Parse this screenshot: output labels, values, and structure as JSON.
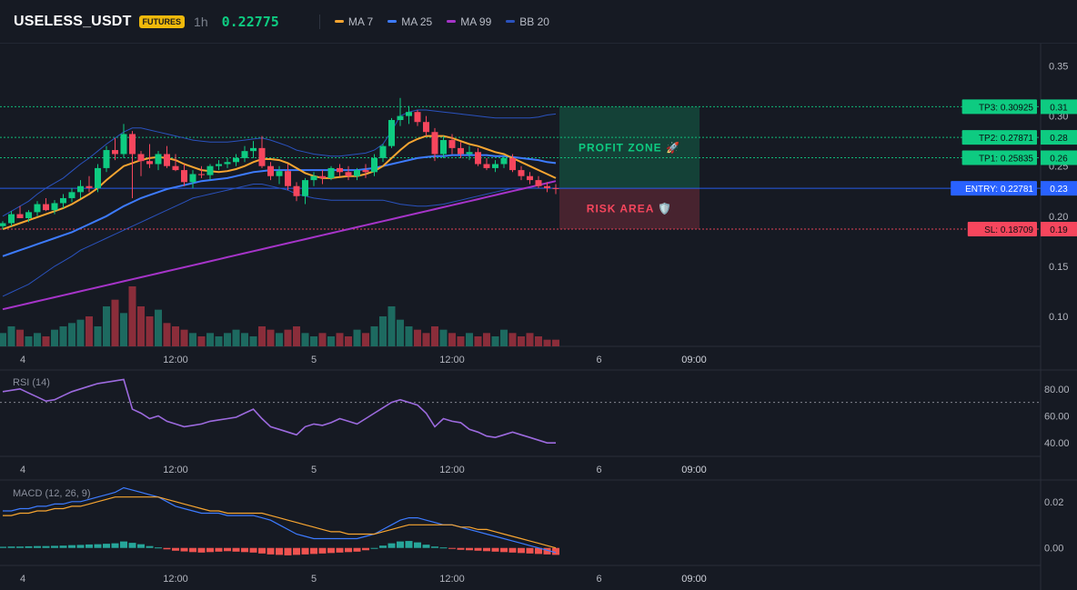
{
  "header": {
    "symbol": "USELESS_USDT",
    "badge": "FUTURES",
    "timeframe": "1h",
    "price": "0.22775",
    "legend": [
      {
        "label": "MA 7",
        "color": "#f7a531"
      },
      {
        "label": "MA 25",
        "color": "#3d7bff"
      },
      {
        "label": "MA 99",
        "color": "#a634c9"
      },
      {
        "label": "BB 20",
        "color": "#2a52be"
      }
    ]
  },
  "colors": {
    "up": "#26a69a",
    "up_candle": "#0ecb81",
    "down": "#f6465d",
    "up_vol": "#1d6a60",
    "down_vol": "#8a2d3a"
  },
  "chart_data": [
    {
      "type": "candlestick",
      "panel": "price",
      "ylim": [
        0.07,
        0.365
      ],
      "y_ticks": [
        "0.35",
        "0.30",
        "0.25",
        "0.20",
        "0.15",
        "0.10"
      ],
      "y_tick_values": [
        0.35,
        0.3,
        0.25,
        0.2,
        0.15,
        0.1
      ],
      "x_ticks": [
        "4",
        "12:00",
        "5",
        "12:00",
        "6",
        "09:00"
      ],
      "x_tick_bars": [
        0,
        20,
        36,
        52,
        69,
        80
      ],
      "candles": [
        [
          0.19,
          0.195,
          0.187,
          0.193
        ],
        [
          0.193,
          0.205,
          0.19,
          0.202
        ],
        [
          0.202,
          0.21,
          0.198,
          0.198
        ],
        [
          0.198,
          0.206,
          0.194,
          0.204
        ],
        [
          0.204,
          0.215,
          0.2,
          0.212
        ],
        [
          0.212,
          0.218,
          0.205,
          0.206
        ],
        [
          0.206,
          0.216,
          0.202,
          0.213
        ],
        [
          0.213,
          0.222,
          0.208,
          0.218
        ],
        [
          0.218,
          0.228,
          0.214,
          0.224
        ],
        [
          0.224,
          0.236,
          0.218,
          0.23
        ],
        [
          0.23,
          0.24,
          0.224,
          0.228
        ],
        [
          0.228,
          0.252,
          0.224,
          0.248
        ],
        [
          0.248,
          0.27,
          0.244,
          0.266
        ],
        [
          0.266,
          0.278,
          0.256,
          0.262
        ],
        [
          0.262,
          0.292,
          0.258,
          0.282
        ],
        [
          0.282,
          0.285,
          0.218,
          0.262
        ],
        [
          0.262,
          0.265,
          0.24,
          0.255
        ],
        [
          0.255,
          0.272,
          0.248,
          0.252
        ],
        [
          0.252,
          0.265,
          0.246,
          0.262
        ],
        [
          0.262,
          0.27,
          0.248,
          0.25
        ],
        [
          0.25,
          0.262,
          0.245,
          0.246
        ],
        [
          0.246,
          0.252,
          0.23,
          0.234
        ],
        [
          0.234,
          0.246,
          0.228,
          0.242
        ],
        [
          0.242,
          0.25,
          0.238,
          0.241
        ],
        [
          0.241,
          0.252,
          0.236,
          0.25
        ],
        [
          0.25,
          0.256,
          0.246,
          0.252
        ],
        [
          0.252,
          0.258,
          0.248,
          0.254
        ],
        [
          0.254,
          0.262,
          0.25,
          0.258
        ],
        [
          0.258,
          0.27,
          0.254,
          0.265
        ],
        [
          0.265,
          0.275,
          0.258,
          0.268
        ],
        [
          0.268,
          0.28,
          0.248,
          0.25
        ],
        [
          0.25,
          0.254,
          0.236,
          0.24
        ],
        [
          0.24,
          0.25,
          0.232,
          0.245
        ],
        [
          0.245,
          0.252,
          0.226,
          0.23
        ],
        [
          0.23,
          0.234,
          0.215,
          0.22
        ],
        [
          0.22,
          0.238,
          0.212,
          0.236
        ],
        [
          0.236,
          0.244,
          0.23,
          0.24
        ],
        [
          0.24,
          0.246,
          0.232,
          0.238
        ],
        [
          0.238,
          0.25,
          0.236,
          0.248
        ],
        [
          0.248,
          0.252,
          0.24,
          0.244
        ],
        [
          0.244,
          0.25,
          0.236,
          0.24
        ],
        [
          0.24,
          0.248,
          0.236,
          0.246
        ],
        [
          0.246,
          0.252,
          0.238,
          0.244
        ],
        [
          0.244,
          0.262,
          0.24,
          0.258
        ],
        [
          0.258,
          0.272,
          0.254,
          0.27
        ],
        [
          0.27,
          0.298,
          0.268,
          0.296
        ],
        [
          0.296,
          0.318,
          0.29,
          0.3
        ],
        [
          0.3,
          0.31,
          0.292,
          0.304
        ],
        [
          0.304,
          0.306,
          0.29,
          0.294
        ],
        [
          0.294,
          0.3,
          0.28,
          0.284
        ],
        [
          0.284,
          0.288,
          0.255,
          0.262
        ],
        [
          0.262,
          0.28,
          0.258,
          0.276
        ],
        [
          0.276,
          0.282,
          0.262,
          0.268
        ],
        [
          0.268,
          0.274,
          0.258,
          0.262
        ],
        [
          0.262,
          0.27,
          0.256,
          0.264
        ],
        [
          0.264,
          0.268,
          0.25,
          0.252
        ],
        [
          0.252,
          0.258,
          0.246,
          0.248
        ],
        [
          0.248,
          0.256,
          0.244,
          0.252
        ],
        [
          0.252,
          0.26,
          0.248,
          0.258
        ],
        [
          0.258,
          0.262,
          0.244,
          0.246
        ],
        [
          0.246,
          0.25,
          0.236,
          0.24
        ],
        [
          0.24,
          0.244,
          0.232,
          0.236
        ],
        [
          0.236,
          0.24,
          0.228,
          0.23
        ],
        [
          0.23,
          0.234,
          0.224,
          0.228
        ],
        [
          0.228,
          0.232,
          0.222,
          0.22775
        ]
      ],
      "volumes": [
        4,
        6,
        5,
        3,
        4,
        3,
        5,
        6,
        7,
        8,
        9,
        6,
        12,
        14,
        10,
        18,
        12,
        9,
        11,
        7,
        6,
        5,
        4,
        3,
        4,
        3,
        4,
        5,
        4,
        3,
        6,
        5,
        4,
        5,
        6,
        4,
        3,
        4,
        3,
        4,
        3,
        5,
        4,
        6,
        9,
        12,
        8,
        6,
        5,
        4,
        6,
        5,
        4,
        3,
        4,
        3,
        4,
        3,
        5,
        4,
        3,
        4,
        3,
        2,
        2
      ],
      "bands": {
        "bb_upper": [
          0.2,
          0.205,
          0.21,
          0.215,
          0.222,
          0.228,
          0.233,
          0.238,
          0.245,
          0.252,
          0.258,
          0.265,
          0.272,
          0.278,
          0.284,
          0.288,
          0.288,
          0.286,
          0.284,
          0.282,
          0.28,
          0.278,
          0.276,
          0.275,
          0.274,
          0.274,
          0.274,
          0.275,
          0.276,
          0.277,
          0.278,
          0.276,
          0.273,
          0.27,
          0.266,
          0.264,
          0.262,
          0.261,
          0.26,
          0.26,
          0.261,
          0.262,
          0.263,
          0.266,
          0.272,
          0.285,
          0.3,
          0.304,
          0.306,
          0.306,
          0.305,
          0.304,
          0.303,
          0.302,
          0.301,
          0.3,
          0.299,
          0.298,
          0.298,
          0.298,
          0.298,
          0.298,
          0.299,
          0.301,
          0.302
        ],
        "bb_lower": [
          0.12,
          0.124,
          0.128,
          0.132,
          0.138,
          0.144,
          0.15,
          0.155,
          0.16,
          0.166,
          0.17,
          0.174,
          0.178,
          0.182,
          0.186,
          0.19,
          0.194,
          0.198,
          0.202,
          0.206,
          0.21,
          0.214,
          0.218,
          0.22,
          0.222,
          0.224,
          0.226,
          0.228,
          0.23,
          0.232,
          0.232,
          0.23,
          0.228,
          0.226,
          0.222,
          0.22,
          0.218,
          0.217,
          0.216,
          0.216,
          0.216,
          0.216,
          0.216,
          0.216,
          0.216,
          0.214,
          0.212,
          0.211,
          0.21,
          0.21,
          0.211,
          0.212,
          0.214,
          0.216,
          0.218,
          0.22,
          0.222,
          0.224,
          0.226,
          0.228,
          0.228,
          0.228,
          0.228,
          0.228,
          0.228
        ],
        "ma7": [
          0.187,
          0.19,
          0.193,
          0.196,
          0.199,
          0.202,
          0.205,
          0.208,
          0.212,
          0.217,
          0.222,
          0.228,
          0.236,
          0.243,
          0.25,
          0.253,
          0.256,
          0.258,
          0.259,
          0.258,
          0.256,
          0.252,
          0.249,
          0.246,
          0.245,
          0.244,
          0.245,
          0.247,
          0.25,
          0.254,
          0.257,
          0.257,
          0.256,
          0.253,
          0.248,
          0.243,
          0.24,
          0.238,
          0.238,
          0.239,
          0.24,
          0.24,
          0.242,
          0.245,
          0.25,
          0.258,
          0.266,
          0.273,
          0.277,
          0.28,
          0.28,
          0.28,
          0.278,
          0.275,
          0.272,
          0.27,
          0.267,
          0.264,
          0.262,
          0.258,
          0.254,
          0.25,
          0.246,
          0.242,
          0.238
        ],
        "ma25": [
          0.16,
          0.163,
          0.166,
          0.169,
          0.172,
          0.175,
          0.178,
          0.181,
          0.184,
          0.188,
          0.192,
          0.196,
          0.2,
          0.205,
          0.21,
          0.214,
          0.218,
          0.221,
          0.224,
          0.227,
          0.229,
          0.231,
          0.233,
          0.235,
          0.236,
          0.237,
          0.238,
          0.24,
          0.242,
          0.244,
          0.245,
          0.246,
          0.246,
          0.246,
          0.246,
          0.246,
          0.246,
          0.246,
          0.246,
          0.246,
          0.246,
          0.246,
          0.247,
          0.248,
          0.25,
          0.252,
          0.254,
          0.256,
          0.258,
          0.259,
          0.26,
          0.26,
          0.261,
          0.261,
          0.261,
          0.261,
          0.261,
          0.26,
          0.26,
          0.259,
          0.258,
          0.257,
          0.256,
          0.254,
          0.253
        ],
        "ma99": [
          0.107,
          0.109,
          0.111,
          0.113,
          0.115,
          0.117,
          0.119,
          0.121,
          0.123,
          0.125,
          0.127,
          0.129,
          0.131,
          0.133,
          0.135,
          0.137,
          0.139,
          0.141,
          0.143,
          0.145,
          0.147,
          0.149,
          0.151,
          0.153,
          0.155,
          0.157,
          0.159,
          0.161,
          0.163,
          0.165,
          0.167,
          0.169,
          0.171,
          0.173,
          0.175,
          0.177,
          0.179,
          0.181,
          0.183,
          0.185,
          0.187,
          0.189,
          0.191,
          0.193,
          0.195,
          0.197,
          0.199,
          0.201,
          0.203,
          0.205,
          0.207,
          0.209,
          0.211,
          0.213,
          0.215,
          0.217,
          0.219,
          0.221,
          0.223,
          0.225,
          0.227,
          0.229,
          0.231,
          0.233,
          0.235
        ]
      },
      "levels": [
        {
          "label": "TP3: 0.30925",
          "tick": "0.31",
          "value": 0.30925,
          "color": "#0ecb81"
        },
        {
          "label": "TP2: 0.27871",
          "tick": "0.28",
          "value": 0.27871,
          "color": "#0ecb81"
        },
        {
          "label": "TP1: 0.25835",
          "tick": "0.26",
          "value": 0.25835,
          "color": "#0ecb81"
        },
        {
          "label": "ENTRY: 0.22781",
          "tick": "0.23",
          "value": 0.22781,
          "color": "#2962ff"
        },
        {
          "label": "SL: 0.18709",
          "tick": "0.19",
          "value": 0.18709,
          "color": "#f6465d"
        }
      ],
      "zones": {
        "profit_label": "PROFIT ZONE 🚀",
        "risk_label": "RISK AREA 🛡️"
      }
    },
    {
      "type": "line",
      "panel": "rsi",
      "title": "RSI (14)",
      "ylim": [
        30,
        92
      ],
      "y_ticks": [
        "80.00",
        "60.00",
        "40.00"
      ],
      "y_tick_values": [
        80,
        60,
        40
      ],
      "overbought": 70,
      "x_ticks": [
        "4",
        "12:00",
        "5",
        "12:00",
        "6",
        "09:00"
      ],
      "values": [
        78,
        79,
        80,
        77,
        74,
        71,
        72,
        75,
        78,
        80,
        82,
        84,
        85,
        86,
        87,
        65,
        62,
        58,
        60,
        56,
        54,
        52,
        53,
        54,
        56,
        57,
        58,
        59,
        62,
        65,
        58,
        52,
        50,
        48,
        46,
        52,
        54,
        53,
        55,
        58,
        56,
        54,
        58,
        62,
        66,
        70,
        72,
        70,
        68,
        62,
        52,
        58,
        56,
        55,
        50,
        48,
        45,
        44,
        46,
        48,
        46,
        44,
        42,
        40,
        40
      ]
    },
    {
      "type": "line",
      "panel": "macd",
      "title": "MACD (12, 26, 9)",
      "ylim": [
        -0.006,
        0.027
      ],
      "y_ticks": [
        "0.02",
        "0.00"
      ],
      "y_tick_values": [
        0.02,
        0.0
      ],
      "x_ticks": [
        "4",
        "12:00",
        "5",
        "12:00",
        "6",
        "09:00"
      ],
      "series": [
        {
          "key": "macd",
          "color": "#3d7bff",
          "values": [
            0.016,
            0.016,
            0.017,
            0.017,
            0.018,
            0.018,
            0.019,
            0.019,
            0.02,
            0.02,
            0.021,
            0.022,
            0.023,
            0.024,
            0.026,
            0.025,
            0.024,
            0.023,
            0.022,
            0.02,
            0.018,
            0.017,
            0.016,
            0.015,
            0.015,
            0.015,
            0.014,
            0.014,
            0.014,
            0.014,
            0.013,
            0.012,
            0.01,
            0.008,
            0.006,
            0.005,
            0.004,
            0.004,
            0.004,
            0.004,
            0.004,
            0.004,
            0.005,
            0.006,
            0.008,
            0.01,
            0.012,
            0.013,
            0.013,
            0.012,
            0.011,
            0.01,
            0.01,
            0.009,
            0.008,
            0.007,
            0.006,
            0.005,
            0.004,
            0.003,
            0.002,
            0.001,
            0.0,
            -0.001,
            -0.002
          ]
        },
        {
          "key": "signal",
          "color": "#f7a531",
          "values": [
            0.014,
            0.014,
            0.015,
            0.015,
            0.016,
            0.016,
            0.017,
            0.017,
            0.018,
            0.018,
            0.019,
            0.02,
            0.021,
            0.022,
            0.022,
            0.022,
            0.022,
            0.022,
            0.022,
            0.021,
            0.02,
            0.019,
            0.018,
            0.017,
            0.016,
            0.016,
            0.015,
            0.015,
            0.015,
            0.015,
            0.015,
            0.014,
            0.013,
            0.012,
            0.011,
            0.01,
            0.009,
            0.008,
            0.007,
            0.007,
            0.006,
            0.006,
            0.006,
            0.006,
            0.007,
            0.008,
            0.009,
            0.01,
            0.01,
            0.01,
            0.01,
            0.01,
            0.01,
            0.009,
            0.009,
            0.008,
            0.008,
            0.007,
            0.006,
            0.005,
            0.004,
            0.003,
            0.002,
            0.001,
            0.0
          ]
        }
      ],
      "histogram": [
        0.0005,
        0.0006,
        0.0006,
        0.0007,
        0.0008,
        0.0008,
        0.0009,
        0.001,
        0.0012,
        0.0013,
        0.0015,
        0.0016,
        0.0018,
        0.002,
        0.0028,
        0.0022,
        0.0016,
        0.0008,
        0.0002,
        -0.0006,
        -0.0012,
        -0.0015,
        -0.0018,
        -0.002,
        -0.0018,
        -0.0016,
        -0.0014,
        -0.0016,
        -0.0018,
        -0.002,
        -0.0024,
        -0.0028,
        -0.003,
        -0.0032,
        -0.003,
        -0.0028,
        -0.0026,
        -0.0024,
        -0.0022,
        -0.002,
        -0.0018,
        -0.0016,
        -0.001,
        0.0,
        0.001,
        0.002,
        0.0028,
        0.003,
        0.0024,
        0.0014,
        0.0006,
        0.0002,
        -0.0004,
        -0.0008,
        -0.001,
        -0.0012,
        -0.0014,
        -0.0016,
        -0.0018,
        -0.002,
        -0.0022,
        -0.0024,
        -0.0026,
        -0.0028,
        -0.003
      ]
    }
  ]
}
